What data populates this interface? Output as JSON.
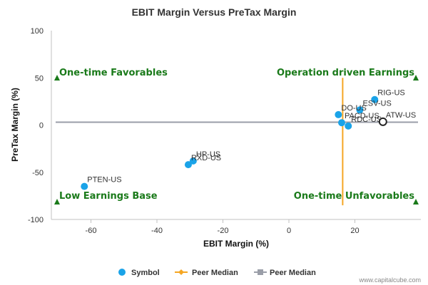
{
  "chart_data": {
    "type": "scatter",
    "title": "EBIT Margin Versus PreTax Margin",
    "xlabel": "EBIT Margin (%)",
    "ylabel": "PreTax Margin (%)",
    "xlim": [
      -72,
      40
    ],
    "ylim": [
      -100,
      100
    ],
    "x_ticks": [
      "-60",
      "-40",
      "-20",
      "0",
      "20"
    ],
    "x_tick_values": [
      -60,
      -40,
      -20,
      0,
      20
    ],
    "y_ticks": [
      "100",
      "50",
      "0",
      "-50",
      "-100"
    ],
    "y_tick_values": [
      100,
      50,
      0,
      -50,
      -100
    ],
    "grid": false,
    "series": [
      {
        "name": "Symbol",
        "color": "#1aa3e8",
        "points": [
          {
            "label": "PTEN-US",
            "x": -62,
            "y": -65
          },
          {
            "label": "HP-US",
            "x": -29,
            "y": -38
          },
          {
            "label": "RXD-US",
            "x": -30.5,
            "y": -42
          },
          {
            "label": "RIG-US",
            "x": 26,
            "y": 27
          },
          {
            "label": "ESV-US",
            "x": 21.5,
            "y": 16
          },
          {
            "label": "DO-US",
            "x": 15,
            "y": 11
          },
          {
            "label": "PACD-US",
            "x": 16,
            "y": 2.5
          },
          {
            "label": "RDC-US",
            "x": 18,
            "y": -1
          },
          {
            "label": "ATW-US",
            "x": 28.5,
            "y": 3.5,
            "hollow": true
          }
        ]
      },
      {
        "name": "Peer Median",
        "color": "#f5a623",
        "orientation": "vertical",
        "x": 16.3,
        "y_range": [
          -85,
          50
        ]
      },
      {
        "name": "Peer Median",
        "color": "#9a9ea8",
        "orientation": "horizontal",
        "y": 3
      }
    ],
    "quadrants": [
      {
        "label": "One-time Favorables",
        "corner": "top-left"
      },
      {
        "label": "Operation driven Earnings",
        "corner": "top-right"
      },
      {
        "label": "Low Earnings Base",
        "corner": "bottom-left"
      },
      {
        "label": "One-time Unfavorables",
        "corner": "bottom-right"
      }
    ],
    "quadrant_marker_color": "#1a7a1a",
    "legend_placement": "bottom-center",
    "credit": "www.capitalcube.com"
  }
}
